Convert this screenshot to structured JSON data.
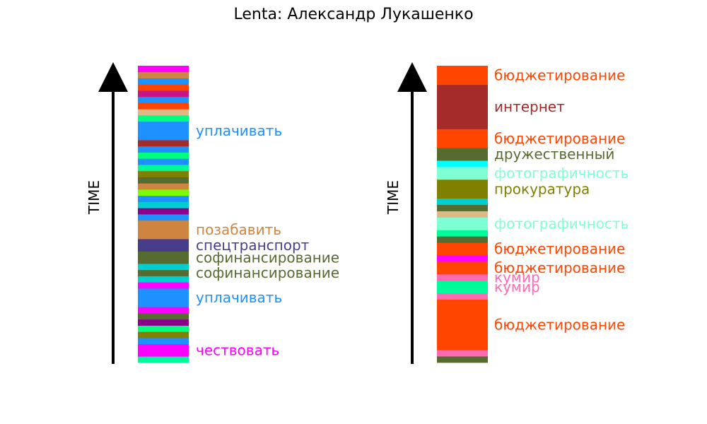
{
  "title": "Lenta: Александр Лукашенко",
  "chart_data": [
    {
      "type": "timeline_bar",
      "axis_label": "TIME",
      "colors": [
        "#00fa9a",
        "#ff00ff",
        "#1e90ff",
        "#808000",
        "#00ff7f",
        "#8b008b",
        "#556b2f",
        "#ff00ff",
        "#1e90ff",
        "#ff00ff",
        "#00ced1",
        "#556b2f",
        "#00ced1",
        "#556b2f",
        "#483d8b",
        "#cd853f",
        "#1e90ff",
        "#8b008b",
        "#00ced1",
        "#1e90ff",
        "#7cfc00",
        "#cd853f",
        "#556b2f",
        "#808000",
        "#00fa9a",
        "#1e90ff",
        "#00ff7f",
        "#1e90ff",
        "#a52a2a",
        "#1e90ff",
        "#00ff7f",
        "#deb887",
        "#ff4500",
        "#1e90ff",
        "#c71585",
        "#ff4500",
        "#1e90ff",
        "#cd853f",
        "#ff00ff"
      ],
      "weights": [
        1,
        2,
        1,
        1,
        1,
        1,
        1,
        1,
        3,
        1,
        1,
        1,
        1,
        2,
        2,
        3,
        1,
        1,
        1,
        1,
        1,
        1,
        1,
        1,
        1,
        1,
        1,
        1,
        1,
        3,
        1,
        1,
        1,
        1,
        1,
        1,
        1,
        1,
        1
      ],
      "labels": [
        {
          "segment": 1,
          "text": "чествовать",
          "color": "#ff00ff"
        },
        {
          "segment": 8,
          "text": "уплачивать",
          "color": "#1e90ff"
        },
        {
          "segment": 11,
          "text": "софинансирование",
          "color": "#556b2f"
        },
        {
          "segment": 13,
          "text": "софинансирование",
          "color": "#556b2f"
        },
        {
          "segment": 14,
          "text": "спецтранспорт",
          "color": "#483d8b"
        },
        {
          "segment": 15,
          "text": "позабавить",
          "color": "#cd853f"
        },
        {
          "segment": 29,
          "text": "уплачивать",
          "color": "#1e90ff"
        }
      ]
    },
    {
      "type": "timeline_bar",
      "axis_label": "TIME",
      "colors": [
        "#556b2f",
        "#ff69b4",
        "#ff4500",
        "#ff69b4",
        "#00fa9a",
        "#ff69b4",
        "#ff4500",
        "#ff00ff",
        "#ff4500",
        "#556b2f",
        "#00fa9a",
        "#7fffd4",
        "#deb887",
        "#556b2f",
        "#00ced1",
        "#808000",
        "#7fffd4",
        "#00ffff",
        "#556b2f",
        "#ff4500",
        "#a52a2a",
        "#ff4500"
      ],
      "weights": [
        1,
        1,
        8,
        1,
        2,
        1,
        2,
        1,
        2,
        1,
        1,
        2,
        1,
        1,
        1,
        3,
        2,
        1,
        2,
        3,
        7,
        3
      ],
      "labels": [
        {
          "segment": 2,
          "text": "бюджетирование",
          "color": "#ff4500"
        },
        {
          "segment": 4,
          "text": "кумир",
          "color": "#ff69b4"
        },
        {
          "segment": 5,
          "text": "кумир",
          "color": "#ff69b4"
        },
        {
          "segment": 6,
          "text": "бюджетирование",
          "color": "#ff4500"
        },
        {
          "segment": 8,
          "text": "бюджетирование",
          "color": "#ff4500"
        },
        {
          "segment": 11,
          "text": "фотографичность",
          "color": "#7fffd4"
        },
        {
          "segment": 15,
          "text": "прокуратура",
          "color": "#808000"
        },
        {
          "segment": 16,
          "text": "фотографичность",
          "color": "#7fffd4"
        },
        {
          "segment": 18,
          "text": "дружественный",
          "color": "#556b2f"
        },
        {
          "segment": 19,
          "text": "бюджетирование",
          "color": "#ff4500"
        },
        {
          "segment": 20,
          "text": "интернет",
          "color": "#a52a2a"
        },
        {
          "segment": 21,
          "text": "бюджетирование",
          "color": "#ff4500"
        }
      ]
    }
  ]
}
